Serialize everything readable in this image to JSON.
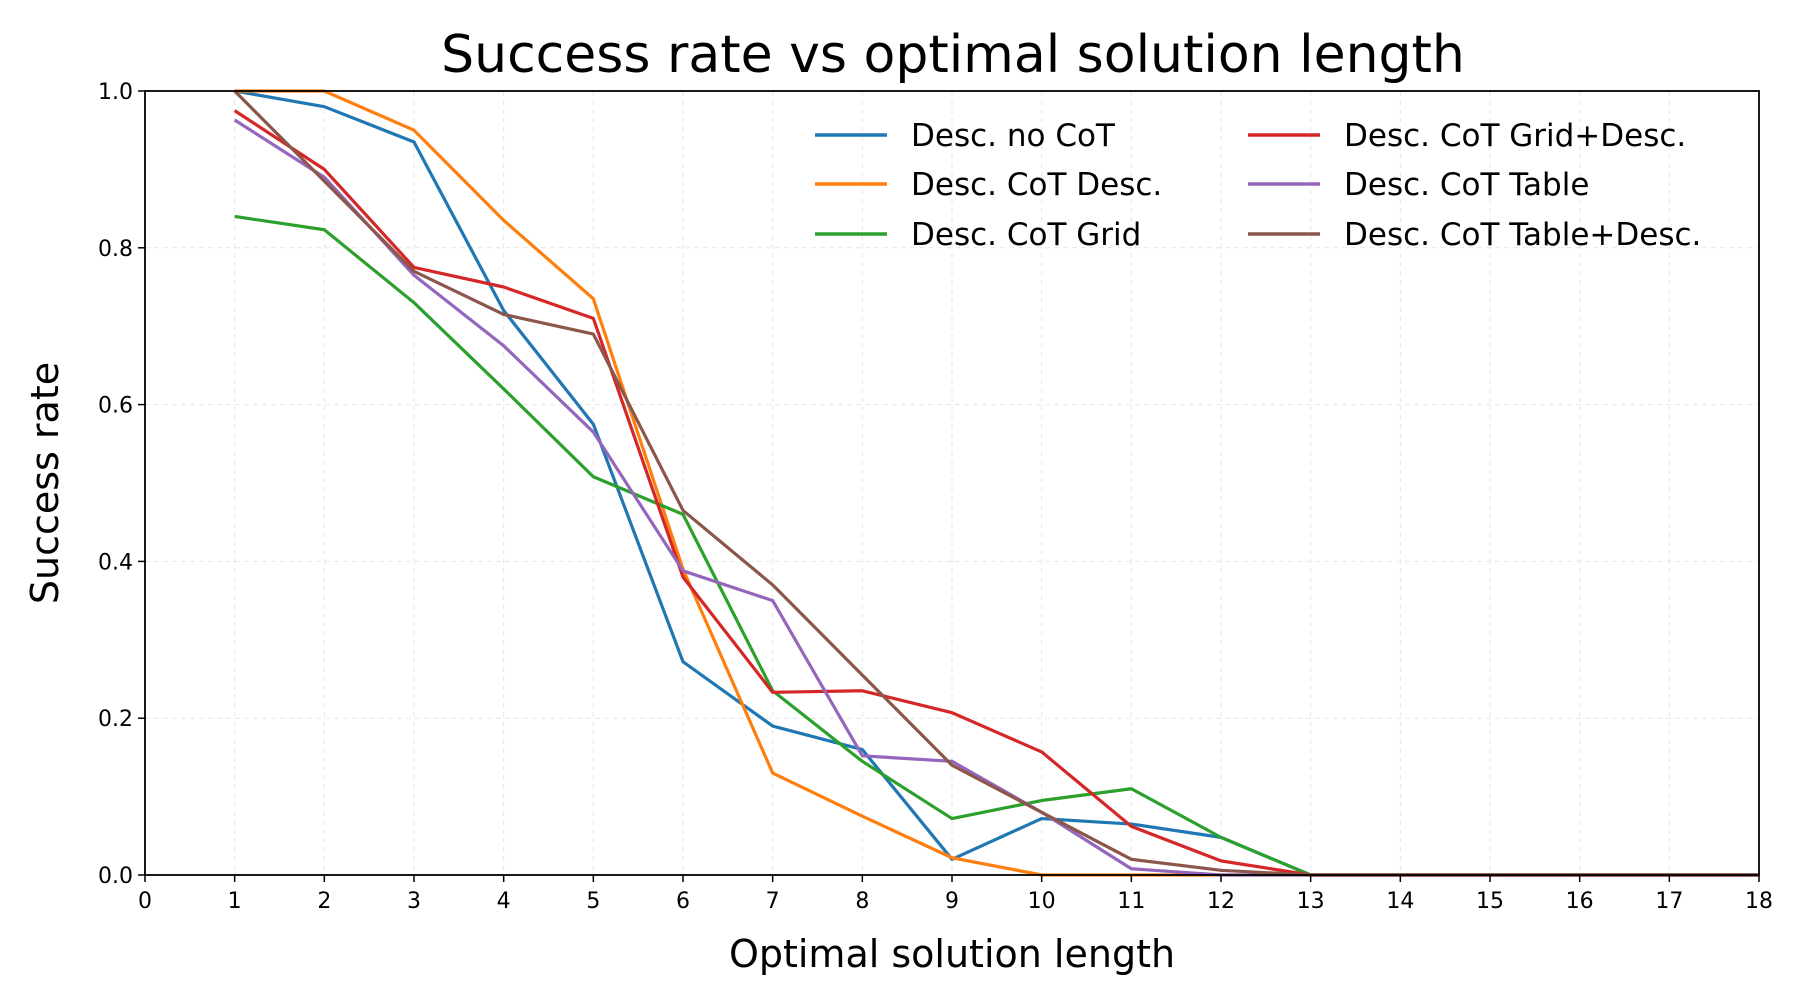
{
  "chart_data": {
    "type": "line",
    "title": "Success rate vs optimal solution length",
    "xlabel": "Optimal solution length",
    "ylabel": "Success rate",
    "xlim": [
      0,
      18
    ],
    "ylim": [
      0,
      1.0
    ],
    "xticks": [
      "0",
      "1",
      "2",
      "3",
      "4",
      "5",
      "6",
      "7",
      "8",
      "9",
      "10",
      "11",
      "12",
      "13",
      "14",
      "15",
      "16",
      "17",
      "18"
    ],
    "yticks": [
      "0.0",
      "0.2",
      "0.4",
      "0.6",
      "0.8",
      "1.0"
    ],
    "grid": true,
    "legend_position": "top-right",
    "x": [
      1,
      2,
      3,
      4,
      5,
      6,
      7,
      8,
      9,
      10,
      11,
      12,
      13,
      14,
      15,
      16,
      17,
      18
    ],
    "series": [
      {
        "name": "Desc. no CoT",
        "color": "#1f77b4",
        "values": [
          1.0,
          0.98,
          0.935,
          0.72,
          0.575,
          0.272,
          0.19,
          0.16,
          0.02,
          0.072,
          0.065,
          0.048,
          0.0,
          0.0,
          0.0,
          0.0,
          0.0,
          0.0
        ]
      },
      {
        "name": "Desc. CoT Desc.",
        "color": "#ff7f0e",
        "values": [
          1.0,
          1.0,
          0.95,
          0.835,
          0.735,
          0.39,
          0.13,
          0.075,
          0.022,
          0.0,
          0.0,
          0.0,
          0.0,
          0.0,
          0.0,
          0.0,
          0.0,
          0.0
        ]
      },
      {
        "name": "Desc. CoT Grid",
        "color": "#2ca02c",
        "values": [
          0.84,
          0.823,
          0.73,
          0.62,
          0.508,
          0.46,
          0.235,
          0.145,
          0.072,
          0.095,
          0.11,
          0.048,
          0.0,
          0.0,
          0.0,
          0.0,
          0.0,
          0.0
        ]
      },
      {
        "name": "Desc. CoT Grid+Desc.",
        "color": "#d62728",
        "values": [
          0.975,
          0.9,
          0.775,
          0.75,
          0.71,
          0.38,
          0.233,
          0.235,
          0.207,
          0.157,
          0.062,
          0.018,
          0.0,
          0.0,
          0.0,
          0.0,
          0.0,
          0.0
        ]
      },
      {
        "name": "Desc. CoT Table",
        "color": "#9467bd",
        "values": [
          0.963,
          0.89,
          0.765,
          0.675,
          0.565,
          0.388,
          0.35,
          0.152,
          0.145,
          0.08,
          0.008,
          0.0,
          0.0,
          0.0,
          0.0,
          0.0,
          0.0,
          0.0
        ]
      },
      {
        "name": "Desc. CoT Table+Desc.",
        "color": "#8c564b",
        "values": [
          1.0,
          0.885,
          0.77,
          0.715,
          0.69,
          0.465,
          0.37,
          0.255,
          0.14,
          0.08,
          0.02,
          0.006,
          0.0,
          0.0,
          0.0,
          0.0,
          0.0,
          0.0
        ]
      }
    ]
  }
}
